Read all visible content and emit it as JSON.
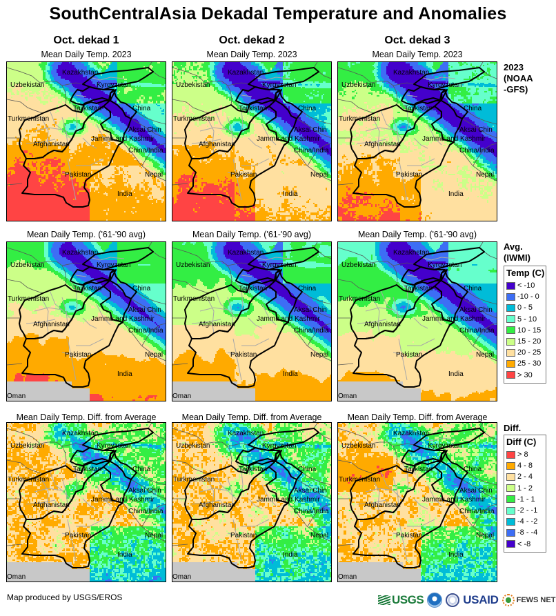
{
  "title": "SouthCentralAsia Dekadal Temperature and Anomalies",
  "columns": [
    {
      "label": "Oct. dekad 1"
    },
    {
      "label": "Oct. dekad 2"
    },
    {
      "label": "Oct. dekad 3"
    }
  ],
  "rows": [
    {
      "key": "current",
      "panel_title": "Mean Daily Temp. 2023",
      "side_label_lines": [
        "2023",
        "(NOAA",
        "-GFS)"
      ]
    },
    {
      "key": "average",
      "panel_title": "Mean Daily Temp. ('61-'90 avg)",
      "side_label_lines": [
        "Avg.",
        "(IWMI)"
      ]
    },
    {
      "key": "difference",
      "panel_title": "Mean Daily Temp. Diff. from Average",
      "side_label_lines": [
        "Diff."
      ]
    }
  ],
  "map_labels": {
    "kazakhstan": "Kazakhstan",
    "uzbekistan": "Uzbekistan",
    "kyrgyzstan": "Kyrgyzstan",
    "tajikistan": "Tajikistan",
    "turkmenistan": "Turkmenistan",
    "china": "China",
    "aksai_chin": "Aksai Chin",
    "jammu_kashmir": "Jammu and Kashmir",
    "china_india": "China/India",
    "afghanistan": "Afghanistan",
    "pakistan": "Pakistan",
    "nepal": "Nepal",
    "india": "India",
    "oman": "Oman"
  },
  "temp_legend": {
    "title": "Temp (C)",
    "items": [
      {
        "label": "< -10",
        "color": "#4400cc"
      },
      {
        "label": "-10 - 0",
        "color": "#3d6ef5"
      },
      {
        "label": "0 - 5",
        "color": "#00bcd8"
      },
      {
        "label": "5 - 10",
        "color": "#66ffcc"
      },
      {
        "label": "10 - 15",
        "color": "#33ee44"
      },
      {
        "label": "15 - 20",
        "color": "#ccff88"
      },
      {
        "label": "20 - 25",
        "color": "#ffe0a0"
      },
      {
        "label": "25 - 30",
        "color": "#ffaa00"
      },
      {
        "label": "> 30",
        "color": "#ff4444"
      }
    ]
  },
  "diff_legend": {
    "title": "Diff (C)",
    "items": [
      {
        "label": "> 8",
        "color": "#ff4444"
      },
      {
        "label": "4 - 8",
        "color": "#ffaa00"
      },
      {
        "label": "2 - 4",
        "color": "#ffe0a0"
      },
      {
        "label": "1 - 2",
        "color": "#ccff88"
      },
      {
        "label": "-1 - 1",
        "color": "#33ee44"
      },
      {
        "label": "-2 - -1",
        "color": "#66ffcc"
      },
      {
        "label": "-4 - -2",
        "color": "#00bcd8"
      },
      {
        "label": "-8 - -4",
        "color": "#3d6ef5"
      },
      {
        "label": "< -8",
        "color": "#4400cc"
      }
    ]
  },
  "nodata_color": "#c8c8c8",
  "footer": {
    "credit": "Map produced by USGS/EROS",
    "logos": {
      "usgs": "USGS",
      "usaid": "USAID",
      "fews": "FEWS NET"
    }
  }
}
